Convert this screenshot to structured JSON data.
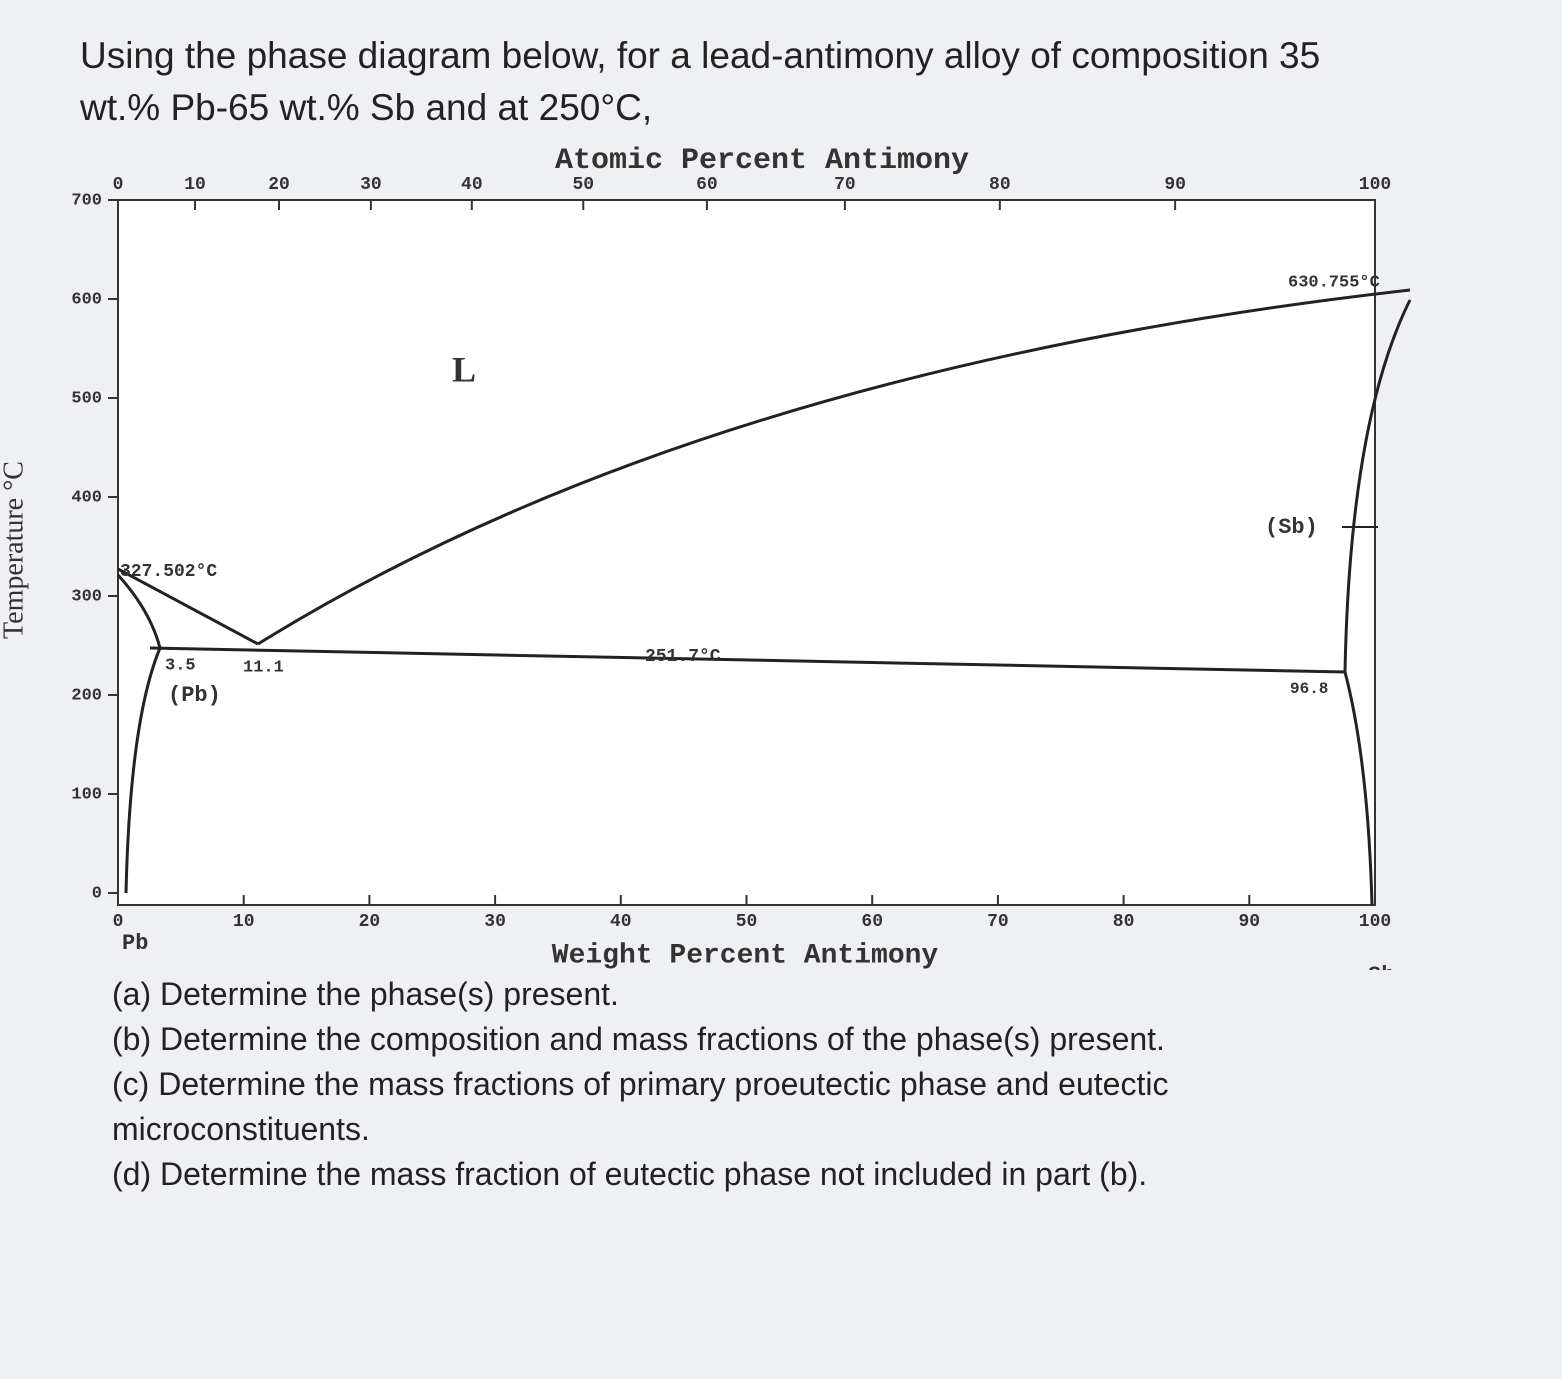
{
  "question": {
    "intro": "Using the phase diagram below, for a lead-antimony alloy of composition 35 wt.% Pb-65 wt.% Sb and at 250°C,",
    "parts": [
      "(a) Determine the phase(s) present.",
      "(b) Determine the composition and mass fractions of the phase(s) present.",
      "(c) Determine the mass fractions of primary proeutectic phase and eutectic microconstituents.",
      "(d) Determine the mass fraction of eutectic phase not included in part (b)."
    ]
  },
  "diagram": {
    "top_axis_title": "Atomic Percent Antimony",
    "bottom_axis_title": "Weight Percent Antimony",
    "y_axis_title": "Temperature °C",
    "y_ticks": [
      0,
      100,
      200,
      300,
      400,
      500,
      600,
      700
    ],
    "bottom_ticks": [
      0,
      10,
      20,
      30,
      40,
      50,
      60,
      70,
      80,
      90,
      100
    ],
    "top_ticks": [
      0,
      10,
      20,
      30,
      40,
      50,
      60,
      70,
      80,
      90,
      100
    ],
    "left_end": "Pb",
    "right_end": "Sb",
    "labels": {
      "pb_melting": "327.502°C",
      "pb_solubility": "3.5",
      "eutectic_comp": "11.1",
      "pb_phase": "(Pb)",
      "eutectic_temp": "251.7°C",
      "sb_solubility": "96.8",
      "sb_melting": "630.755°C",
      "sb_phase": "(Sb)",
      "liquid": "L"
    }
  }
}
